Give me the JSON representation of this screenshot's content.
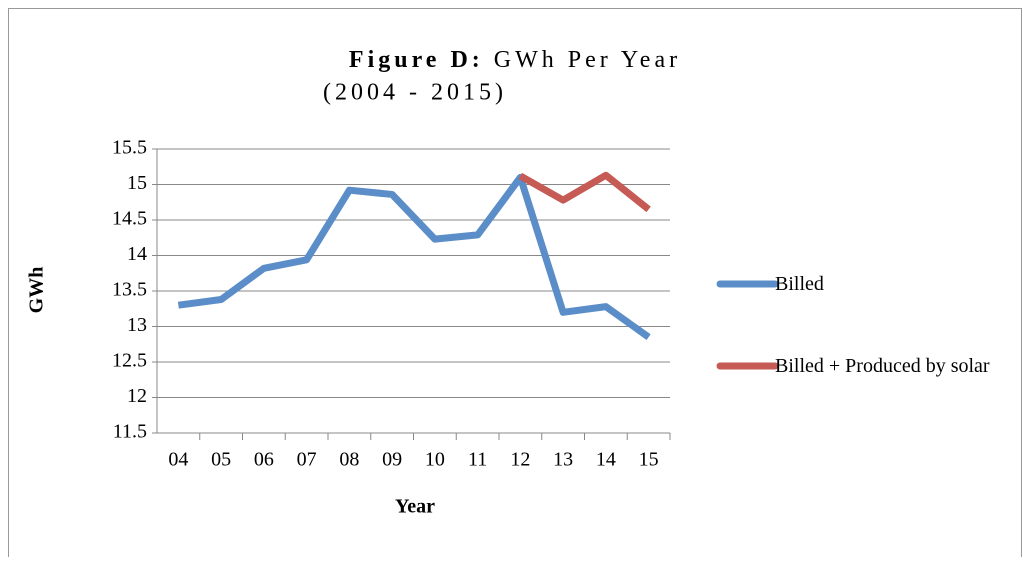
{
  "chart_data": {
    "type": "line",
    "title_label": "Figure D:",
    "title": "GWh Per Year",
    "subtitle": "(2004 - 2015)",
    "x_label": "Year",
    "y_label": "GWh",
    "categories": [
      "04",
      "05",
      "06",
      "07",
      "08",
      "09",
      "10",
      "11",
      "12",
      "13",
      "14",
      "15"
    ],
    "series": [
      {
        "name": "Billed",
        "color": "#5b8ec8",
        "values": [
          13.3,
          13.38,
          13.82,
          13.94,
          14.92,
          14.86,
          14.23,
          14.29,
          15.1,
          13.2,
          13.28,
          12.85
        ]
      },
      {
        "name": "Billed + Produced by solar",
        "color": "#c65a55",
        "values": [
          null,
          null,
          null,
          null,
          null,
          null,
          null,
          null,
          15.12,
          14.78,
          15.13,
          14.65
        ]
      }
    ],
    "ylim": [
      11.5,
      15.5
    ],
    "yticks": [
      11.5,
      12,
      12.5,
      13,
      13.5,
      14,
      14.5,
      15,
      15.5
    ],
    "grid": true,
    "legend": "right"
  }
}
